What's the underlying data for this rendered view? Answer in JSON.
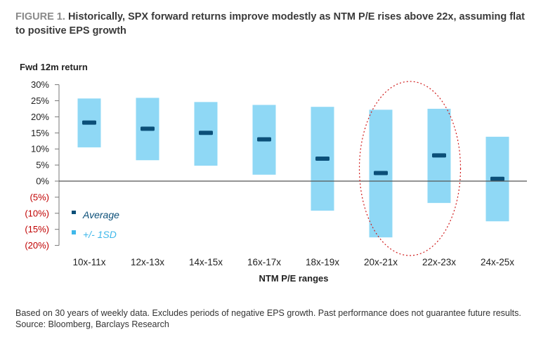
{
  "figure_label": "FIGURE 1.",
  "figure_title": "Historically, SPX forward returns improve modestly as NTM P/E rises above 22x, assuming flat to positive EPS growth",
  "footnote": "Based on 30 years of weekly data. Excludes periods of negative EPS growth. Past performance does not guarantee future results.",
  "source": "Source: Bloomberg, Barclays Research",
  "colors": {
    "band": "#8fd8f5",
    "average": "#0b4f78",
    "negative_tick": "#c00000",
    "highlight": "#d01c1c"
  },
  "chart_data": {
    "type": "bar",
    "title": "Historically, SPX forward returns improve modestly as NTM P/E rises above 22x, assuming flat to positive EPS growth",
    "ylabel": "Fwd 12m return",
    "xlabel": "NTM P/E ranges",
    "ylim": [
      -20,
      30
    ],
    "yticks": [
      {
        "value": 30,
        "label": "30%"
      },
      {
        "value": 25,
        "label": "25%"
      },
      {
        "value": 20,
        "label": "20%"
      },
      {
        "value": 15,
        "label": "15%"
      },
      {
        "value": 10,
        "label": "10%"
      },
      {
        "value": 5,
        "label": "5%"
      },
      {
        "value": 0,
        "label": "0%"
      },
      {
        "value": -5,
        "label": "(5%)"
      },
      {
        "value": -10,
        "label": "(10%)"
      },
      {
        "value": -15,
        "label": "(15%)"
      },
      {
        "value": -20,
        "label": "(20%)"
      }
    ],
    "categories": [
      "10x-11x",
      "12x-13x",
      "14x-15x",
      "16x-17x",
      "18x-19x",
      "20x-21x",
      "22x-23x",
      "24x-25x"
    ],
    "series": [
      {
        "name": "Average",
        "values": [
          18.2,
          16.3,
          15.0,
          13.0,
          7.0,
          2.5,
          8.0,
          0.7
        ]
      },
      {
        "name": "+/- 1SD",
        "low": [
          10.5,
          6.5,
          4.8,
          2.0,
          -9.2,
          -17.5,
          -6.8,
          -12.5
        ],
        "high": [
          25.7,
          25.9,
          24.6,
          23.7,
          23.1,
          22.2,
          22.5,
          13.8
        ]
      }
    ],
    "legend": [
      "Average",
      "+/- 1SD"
    ],
    "legend_position": "bottom-left",
    "annotation": "dotted red ellipse highlighting 20x-21x and 22x-23x",
    "grid": false
  }
}
